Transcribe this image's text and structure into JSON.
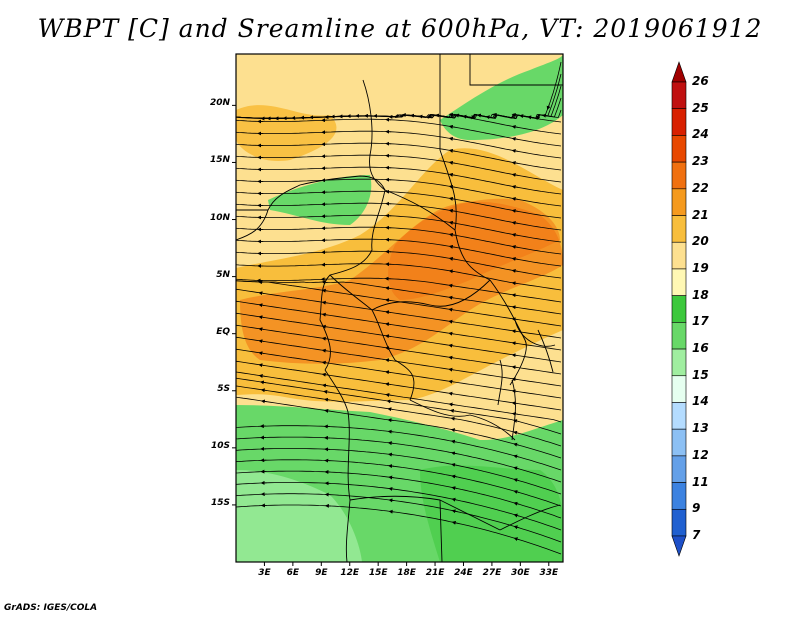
{
  "title": "WBPT [C] and Sreamline at 600hPa, VT: 2019061912",
  "footer": "GrADS: IGES/COLA",
  "map": {
    "lat_labels": [
      "20N",
      "15N",
      "10N",
      "5N",
      "EQ",
      "5S",
      "10S",
      "15S"
    ],
    "lat_values": [
      20,
      15,
      10,
      5,
      0,
      -5,
      -10,
      -15
    ],
    "lon_labels": [
      "3E",
      "6E",
      "9E",
      "12E",
      "15E",
      "18E",
      "21E",
      "24E",
      "27E",
      "30E",
      "33E"
    ],
    "lon_values": [
      3,
      6,
      9,
      12,
      15,
      18,
      21,
      24,
      27,
      30,
      33
    ],
    "lon_range": [
      0,
      34.5
    ],
    "lat_range": [
      -20,
      24.5
    ]
  },
  "colorbar": {
    "labels": [
      "26",
      "25",
      "24",
      "23",
      "22",
      "21",
      "20",
      "19",
      "18",
      "17",
      "16",
      "15",
      "14",
      "13",
      "12",
      "11",
      "9",
      "7"
    ],
    "colors": [
      "#a00000",
      "#c01010",
      "#d82000",
      "#e84800",
      "#f07010",
      "#f59a1e",
      "#f8be3c",
      "#fde090",
      "#fff8b4",
      "#3cc83c",
      "#68d868",
      "#a0eea0",
      "#e6fff0",
      "#b4dcff",
      "#8cc0f4",
      "#64a0e8",
      "#3c82e0",
      "#2060d0",
      "#1e50c8"
    ]
  }
}
